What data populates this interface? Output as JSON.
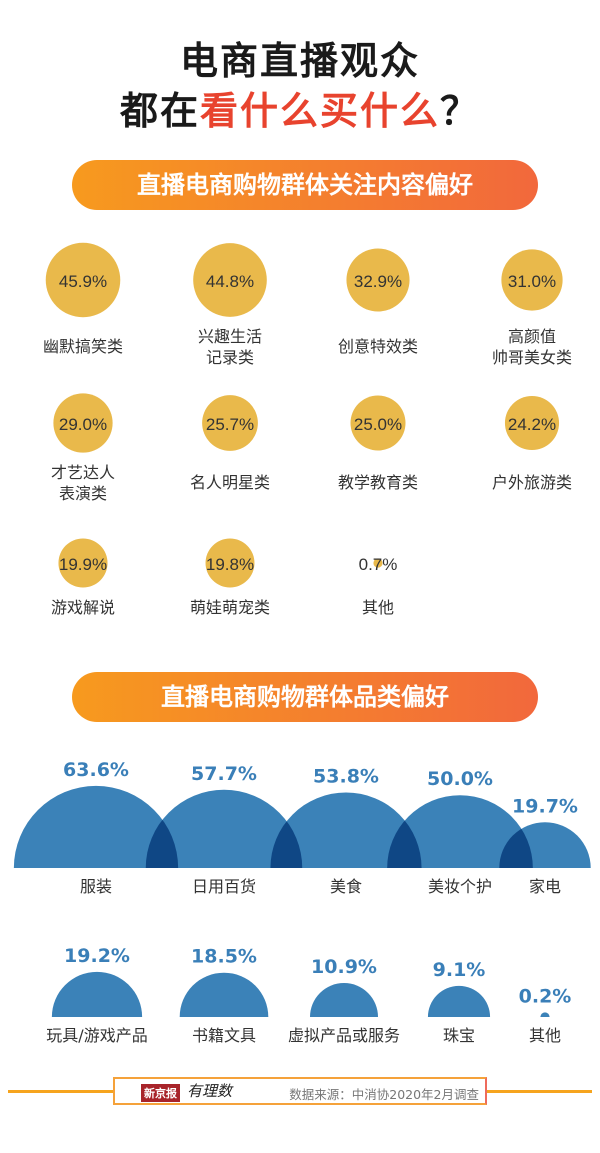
{
  "title": {
    "line1": "电商直播观众",
    "line2_prefix": "都在",
    "line2_highlight": "看什么买什么",
    "line2_suffix": "？"
  },
  "section1_title": "直播电商购物群体关注内容偏好",
  "section2_title": "直播电商购物群体品类偏好",
  "colors": {
    "yellow": "#e9b94b",
    "blue": "#3b82b8",
    "blue_overlap": "#0f4785",
    "label_blue": "#3a7fb8",
    "orange": "#f79a1e",
    "red": "#e8432e"
  },
  "chart_data": [
    {
      "type": "bubble",
      "title": "直播电商购物群体关注内容偏好",
      "unit": "%",
      "categories": [
        [
          "幽默搞笑类"
        ],
        [
          "兴趣生活",
          "记录类"
        ],
        [
          "创意特效类"
        ],
        [
          "高颜值",
          "帅哥美女类"
        ],
        [
          "才艺达人",
          "表演类"
        ],
        [
          "名人明星类"
        ],
        [
          "教学教育类"
        ],
        [
          "户外旅游类"
        ],
        [
          "游戏解说"
        ],
        [
          "萌娃萌宠类"
        ],
        [
          "其他"
        ]
      ],
      "values": [
        45.9,
        44.8,
        32.9,
        31.0,
        29.0,
        25.7,
        25.0,
        24.2,
        19.9,
        19.8,
        0.7
      ],
      "labels": [
        "45.9%",
        "44.8%",
        "32.9%",
        "31.0%",
        "29.0%",
        "25.7%",
        "25.0%",
        "24.2%",
        "19.9%",
        "19.8%",
        "0.7%"
      ]
    },
    {
      "type": "semicircle",
      "title": "直播电商购物群体品类偏好",
      "unit": "%",
      "categories": [
        "服装",
        "日用百货",
        "美食",
        "美妆个护",
        "家电",
        "玩具/游戏产品",
        "书籍文具",
        "虚拟产品或服务",
        "珠宝",
        "其他"
      ],
      "values": [
        63.6,
        57.7,
        53.8,
        50.0,
        19.7,
        19.2,
        18.5,
        10.9,
        9.1,
        0.2
      ],
      "labels": [
        "63.6%",
        "57.7%",
        "53.8%",
        "50.0%",
        "19.7%",
        "19.2%",
        "18.5%",
        "10.9%",
        "9.1%",
        "0.2%"
      ]
    }
  ],
  "footer": {
    "brand": "新京报",
    "brand2": "有理数",
    "source": "数据来源：中消协2020年2月调查"
  }
}
